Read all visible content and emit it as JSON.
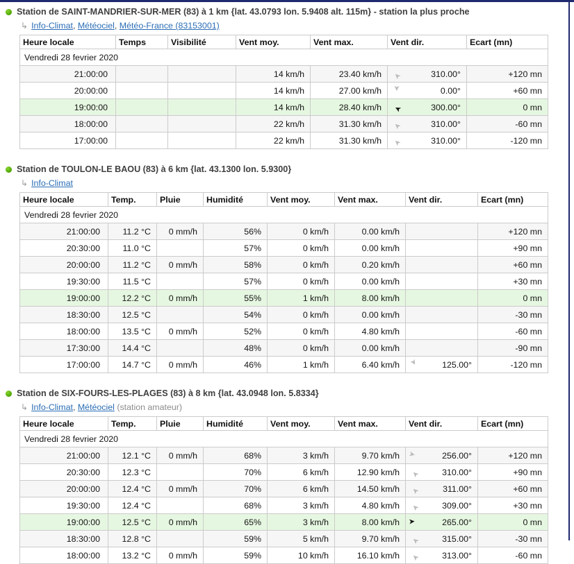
{
  "frame": {
    "border_color": "#1f2a6e"
  },
  "icons": {
    "return_glyph": "↳",
    "wind_arrow_glyph": "➤"
  },
  "colors": {
    "link_blue": "#2a6db5",
    "highlight_green": "#e6f7e1",
    "zebra_gray": "#f6f6f6",
    "arrow_gray": "#bcbcbc",
    "arrow_black": "#161616",
    "bullet_green": "#46a000"
  },
  "stations": [
    {
      "title": "Station de SAINT-MANDRIER-SUR-MER (83) à 1 km {lat. 43.0793 lon. 5.9408 alt. 115m} - station la plus proche",
      "links": [
        "Info-Climat",
        "Météociel",
        "Météo-France (83153001)"
      ],
      "note": "",
      "columns": [
        "Heure locale",
        "Temps",
        "Visibilité",
        "Vent moy.",
        "Vent max.",
        "Vent dir.",
        "Ecart (mn)"
      ],
      "date": "Vendredi 28 fevrier 2020",
      "rows": [
        {
          "time": "21:00:00",
          "values": [
            "",
            "",
            "14 km/h",
            "23.40 km/h"
          ],
          "dir": "310.00°",
          "arrow_rot": -137,
          "arrow_color": "#bcbcbc",
          "ecart": "+120 mn",
          "highlight": false
        },
        {
          "time": "20:00:00",
          "values": [
            "",
            "",
            "14 km/h",
            "27.00 km/h"
          ],
          "dir": "0.00°",
          "arrow_rot": 90,
          "arrow_color": "#bcbcbc",
          "ecart": "+60 mn",
          "highlight": false
        },
        {
          "time": "19:00:00",
          "values": [
            "",
            "",
            "14 km/h",
            "28.40 km/h"
          ],
          "dir": "300.00°",
          "arrow_rot": -152,
          "arrow_color": "#161616",
          "ecart": "0 mn",
          "highlight": true
        },
        {
          "time": "18:00:00",
          "values": [
            "",
            "",
            "22 km/h",
            "31.30 km/h"
          ],
          "dir": "310.00°",
          "arrow_rot": -137,
          "arrow_color": "#bcbcbc",
          "ecart": "-60 mn",
          "highlight": false
        },
        {
          "time": "17:00:00",
          "values": [
            "",
            "",
            "22 km/h",
            "31.30 km/h"
          ],
          "dir": "310.00°",
          "arrow_rot": -137,
          "arrow_color": "#bcbcbc",
          "ecart": "-120 mn",
          "highlight": false
        }
      ]
    },
    {
      "title": "Station de TOULON-LE BAOU (83) à 6 km {lat. 43.1300 lon. 5.9300}",
      "links": [
        "Info-Climat"
      ],
      "note": "",
      "columns": [
        "Heure locale",
        "Temp.",
        "Pluie",
        "Humidité",
        "Vent moy.",
        "Vent max.",
        "Vent dir.",
        "Ecart (mn)"
      ],
      "date": "Vendredi 28 fevrier 2020",
      "rows": [
        {
          "time": "21:00:00",
          "values": [
            "11.2 °C",
            "0 mm/h",
            "56%",
            "0 km/h",
            "0.00 km/h"
          ],
          "dir": "",
          "arrow_rot": 0,
          "arrow_color": "",
          "ecart": "+120 mn",
          "highlight": false
        },
        {
          "time": "20:30:00",
          "values": [
            "11.0 °C",
            "",
            "57%",
            "0 km/h",
            "0.00 km/h"
          ],
          "dir": "",
          "arrow_rot": 0,
          "arrow_color": "",
          "ecart": "+90 mn",
          "highlight": false
        },
        {
          "time": "20:00:00",
          "values": [
            "11.2 °C",
            "0 mm/h",
            "58%",
            "0 km/h",
            "0.20 km/h"
          ],
          "dir": "",
          "arrow_rot": 0,
          "arrow_color": "",
          "ecart": "+60 mn",
          "highlight": false
        },
        {
          "time": "19:30:00",
          "values": [
            "11.5 °C",
            "",
            "57%",
            "0 km/h",
            "0.00 km/h"
          ],
          "dir": "",
          "arrow_rot": 0,
          "arrow_color": "",
          "ecart": "+30 mn",
          "highlight": false
        },
        {
          "time": "19:00:00",
          "values": [
            "12.2 °C",
            "0 mm/h",
            "55%",
            "1 km/h",
            "8.00 km/h"
          ],
          "dir": "",
          "arrow_rot": 0,
          "arrow_color": "",
          "ecart": "0 mn",
          "highlight": true
        },
        {
          "time": "18:30:00",
          "values": [
            "12.5 °C",
            "",
            "54%",
            "0 km/h",
            "0.00 km/h"
          ],
          "dir": "",
          "arrow_rot": 0,
          "arrow_color": "",
          "ecart": "-30 mn",
          "highlight": false
        },
        {
          "time": "18:00:00",
          "values": [
            "13.5 °C",
            "0 mm/h",
            "52%",
            "0 km/h",
            "4.80 km/h"
          ],
          "dir": "",
          "arrow_rot": 0,
          "arrow_color": "",
          "ecart": "-60 mn",
          "highlight": false
        },
        {
          "time": "17:30:00",
          "values": [
            "14.4 °C",
            "",
            "48%",
            "0 km/h",
            "0.00 km/h"
          ],
          "dir": "",
          "arrow_rot": 0,
          "arrow_color": "",
          "ecart": "-90 mn",
          "highlight": false
        },
        {
          "time": "17:00:00",
          "values": [
            "14.7 °C",
            "0 mm/h",
            "46%",
            "1 km/h",
            "6.40 km/h"
          ],
          "dir": "125.00°",
          "arrow_rot": 60,
          "arrow_color": "#bcbcbc",
          "ecart": "-120 mn",
          "highlight": false
        }
      ]
    },
    {
      "title": "Station de SIX-FOURS-LES-PLAGES (83) à 8 km {lat. 43.0948 lon. 5.8334}",
      "links": [
        "Info-Climat",
        "Météociel"
      ],
      "note": "(station amateur)",
      "columns": [
        "Heure locale",
        "Temp.",
        "Pluie",
        "Humidité",
        "Vent moy.",
        "Vent max.",
        "Vent dir.",
        "Ecart (mn)"
      ],
      "date": "Vendredi 28 fevrier 2020",
      "rows": [
        {
          "time": "21:00:00",
          "values": [
            "12.1 °C",
            "0 mm/h",
            "68%",
            "3 km/h",
            "9.70 km/h"
          ],
          "dir": "256.00°",
          "arrow_rot": 14,
          "arrow_color": "#bcbcbc",
          "ecart": "+120 mn",
          "highlight": false
        },
        {
          "time": "20:30:00",
          "values": [
            "12.3 °C",
            "",
            "70%",
            "6 km/h",
            "12.90 km/h"
          ],
          "dir": "310.00°",
          "arrow_rot": -137,
          "arrow_color": "#bcbcbc",
          "ecart": "+90 mn",
          "highlight": false
        },
        {
          "time": "20:00:00",
          "values": [
            "12.4 °C",
            "0 mm/h",
            "70%",
            "6 km/h",
            "14.50 km/h"
          ],
          "dir": "311.00°",
          "arrow_rot": -137,
          "arrow_color": "#bcbcbc",
          "ecart": "+60 mn",
          "highlight": false
        },
        {
          "time": "19:30:00",
          "values": [
            "12.4 °C",
            "",
            "68%",
            "3 km/h",
            "4.80 km/h"
          ],
          "dir": "309.00°",
          "arrow_rot": -136,
          "arrow_color": "#bcbcbc",
          "ecart": "+30 mn",
          "highlight": false
        },
        {
          "time": "19:00:00",
          "values": [
            "12.5 °C",
            "0 mm/h",
            "65%",
            "3 km/h",
            "8.00 km/h"
          ],
          "dir": "265.00°",
          "arrow_rot": -4,
          "arrow_color": "#161616",
          "ecart": "0 mn",
          "highlight": true
        },
        {
          "time": "18:30:00",
          "values": [
            "12.8 °C",
            "",
            "59%",
            "5 km/h",
            "9.70 km/h"
          ],
          "dir": "315.00°",
          "arrow_rot": -140,
          "arrow_color": "#bcbcbc",
          "ecart": "-30 mn",
          "highlight": false
        },
        {
          "time": "18:00:00",
          "values": [
            "13.2 °C",
            "0 mm/h",
            "59%",
            "10 km/h",
            "16.10 km/h"
          ],
          "dir": "313.00°",
          "arrow_rot": -138,
          "arrow_color": "#bcbcbc",
          "ecart": "-60 mn",
          "highlight": false
        }
      ]
    }
  ]
}
